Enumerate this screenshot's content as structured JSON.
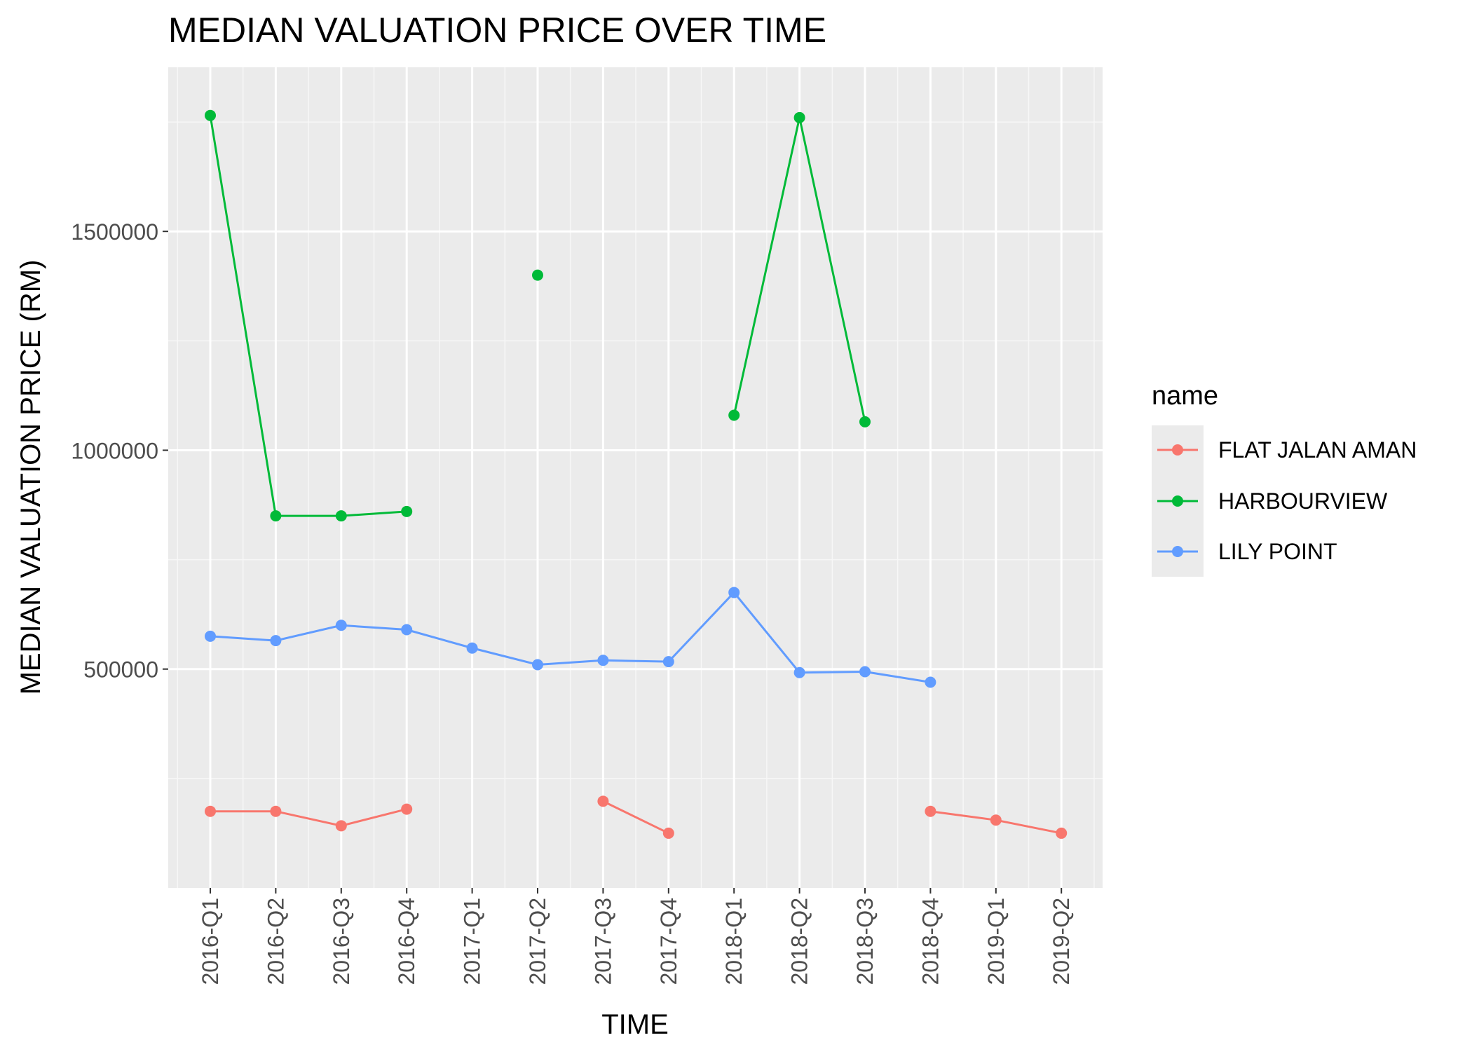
{
  "chart_data": {
    "type": "line",
    "title": "MEDIAN VALUATION PRICE OVER TIME",
    "xlabel": "TIME",
    "ylabel": "MEDIAN VALUATION PRICE (RM)",
    "categories": [
      "2016-Q1",
      "2016-Q2",
      "2016-Q3",
      "2016-Q4",
      "2017-Q1",
      "2017-Q2",
      "2017-Q3",
      "2017-Q4",
      "2018-Q1",
      "2018-Q2",
      "2018-Q3",
      "2018-Q4",
      "2019-Q1",
      "2019-Q2"
    ],
    "ylim": [
      0,
      1875000
    ],
    "yticks": [
      500000,
      1000000,
      1500000
    ],
    "ytick_labels": [
      "500000",
      "1000000",
      "1500000"
    ],
    "grid": true,
    "legend": {
      "title": "name",
      "position": "right"
    },
    "series": [
      {
        "name": "FLAT JALAN AMAN",
        "color": "#F8766D",
        "values": [
          175000,
          175000,
          142000,
          180000,
          null,
          null,
          198000,
          125000,
          null,
          null,
          null,
          175000,
          155000,
          125000
        ]
      },
      {
        "name": "HARBOURVIEW",
        "color": "#00BA38",
        "values": [
          1765000,
          850000,
          850000,
          860000,
          null,
          1400000,
          null,
          null,
          1080000,
          1760000,
          1065000,
          null,
          null,
          null
        ]
      },
      {
        "name": "LILY POINT",
        "color": "#619CFF",
        "values": [
          575000,
          565000,
          600000,
          590000,
          548000,
          510000,
          520000,
          517000,
          675000,
          492000,
          494000,
          470000,
          null,
          null
        ]
      }
    ]
  }
}
